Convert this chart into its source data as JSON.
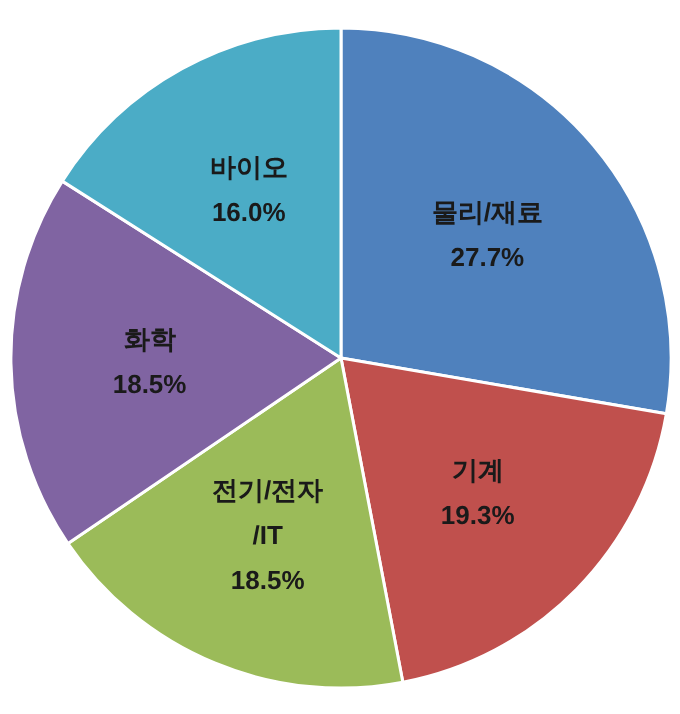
{
  "chart_data": {
    "type": "pie",
    "categories": [
      "물리/재료",
      "기계",
      "전기/전자\n/IT",
      "화학",
      "바이오"
    ],
    "values": [
      27.7,
      19.3,
      18.5,
      18.5,
      16.0
    ],
    "colors": [
      "#4f81bd",
      "#c0504d",
      "#9bbb59",
      "#8064a2",
      "#4bacc6"
    ],
    "value_labels": [
      "27.7%",
      "19.3%",
      "18.5%",
      "18.5%",
      "16.0%"
    ]
  }
}
